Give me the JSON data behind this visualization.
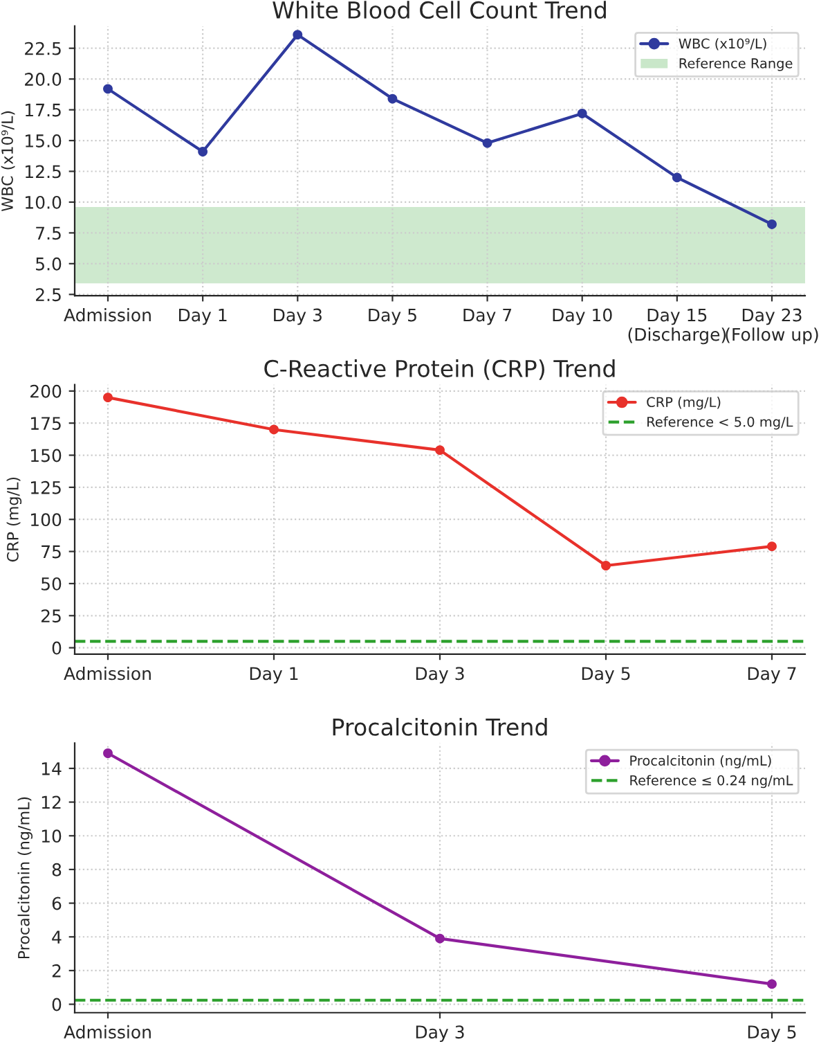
{
  "chart_data": [
    {
      "type": "line",
      "title": "White Blood Cell Count Trend",
      "ylabel": "WBC (x10⁹/L)",
      "categories": [
        "Admission",
        "Day 1",
        "Day 3",
        "Day 5",
        "Day 7",
        "Day 10",
        "Day 15 (Discharge)",
        "Day 23 (Follow up)"
      ],
      "series": [
        {
          "name": "WBC (x10⁹/L)",
          "color": "#2f3a9e",
          "values": [
            19.2,
            14.1,
            23.6,
            18.4,
            14.8,
            17.2,
            12.0,
            8.2
          ]
        }
      ],
      "bands": [
        {
          "axis": "y",
          "from": 3.4,
          "to": 9.6,
          "label": "Reference Range",
          "color": "#c9e7c9"
        }
      ],
      "ylim": [
        2.4,
        24.3
      ],
      "yticks": [
        {
          "value": 2.5,
          "label": "2.5"
        },
        {
          "value": 5,
          "label": "5.0"
        },
        {
          "value": 7.5,
          "label": "7.5"
        },
        {
          "value": 10,
          "label": "10.0"
        },
        {
          "value": 12.5,
          "label": "12.5"
        },
        {
          "value": 15,
          "label": "15.0"
        },
        {
          "value": 17.5,
          "label": "17.5"
        },
        {
          "value": 20,
          "label": "20.0"
        },
        {
          "value": 22.5,
          "label": "22.5"
        }
      ],
      "grid": true,
      "legend": "top right",
      "marker": "circle",
      "line_style": "solid"
    },
    {
      "type": "line",
      "title": "C-Reactive Protein (CRP) Trend",
      "ylabel": "CRP (mg/L)",
      "categories": [
        "Admission",
        "Day 1",
        "Day 3",
        "Day 5",
        "Day 7"
      ],
      "series": [
        {
          "name": "CRP (mg/L)",
          "color": "#e8312b",
          "values": [
            195,
            170,
            154,
            64,
            79
          ]
        }
      ],
      "ref_lines": [
        {
          "axis": "y",
          "value": 5,
          "label": "Reference < 5.0 mg/L",
          "color": "#2ca02c",
          "line_style": "dashed"
        }
      ],
      "ylim": [
        -5,
        205
      ],
      "yticks": [
        0,
        25,
        50,
        75,
        100,
        125,
        150,
        175,
        200
      ],
      "grid": true,
      "legend": "top right",
      "marker": "circle",
      "line_style": "solid"
    },
    {
      "type": "line",
      "title": "Procalcitonin Trend",
      "ylabel": "Procalcitonin (ng/mL)",
      "categories": [
        "Admission",
        "Day 3",
        "Day 5"
      ],
      "series": [
        {
          "name": "Procalcitonin (ng/mL)",
          "color": "#8e1f9c",
          "values": [
            14.9,
            3.9,
            1.2
          ]
        }
      ],
      "ref_lines": [
        {
          "axis": "y",
          "value": 0.24,
          "label": "Reference ≤ 0.24 ng/mL",
          "color": "#2ca02c",
          "line_style": "dashed"
        }
      ],
      "ylim": [
        -0.5,
        15.5
      ],
      "yticks": [
        0,
        2,
        4,
        6,
        8,
        10,
        12,
        14
      ],
      "grid": true,
      "legend": "top right",
      "marker": "circle",
      "line_style": "solid"
    }
  ]
}
